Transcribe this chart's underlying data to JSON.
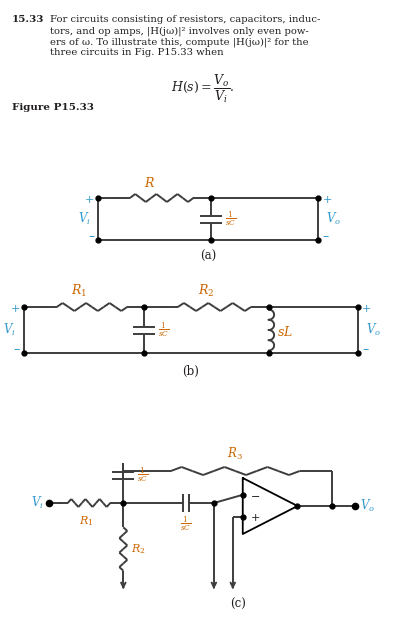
{
  "bg_color": "#ffffff",
  "text_color": "#231f20",
  "label_color_vi": "#3399cc",
  "label_color_vo": "#cc6600",
  "label_color_r": "#cc6600",
  "line_color": "#3d3d3d",
  "line_color_b": "#444444",
  "problem_number": "15.33",
  "figure_label": "Figure P15.33",
  "circuit_a_label": "(a)",
  "circuit_b_label": "(b)",
  "circuit_c_label": "(c)"
}
